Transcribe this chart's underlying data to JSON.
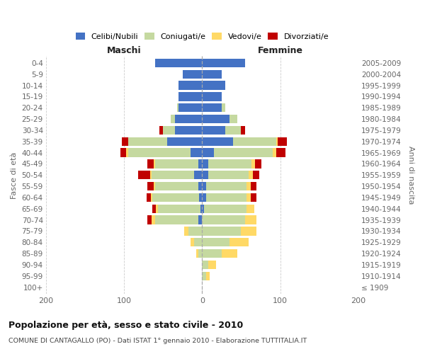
{
  "age_groups": [
    "100+",
    "95-99",
    "90-94",
    "85-89",
    "80-84",
    "75-79",
    "70-74",
    "65-69",
    "60-64",
    "55-59",
    "50-54",
    "45-49",
    "40-44",
    "35-39",
    "30-34",
    "25-29",
    "20-24",
    "15-19",
    "10-14",
    "5-9",
    "0-4"
  ],
  "birth_years": [
    "≤ 1909",
    "1910-1914",
    "1915-1919",
    "1920-1924",
    "1925-1929",
    "1930-1934",
    "1935-1939",
    "1940-1944",
    "1945-1949",
    "1950-1954",
    "1955-1959",
    "1960-1964",
    "1965-1969",
    "1970-1974",
    "1975-1979",
    "1980-1984",
    "1985-1989",
    "1990-1994",
    "1995-1999",
    "2000-2004",
    "2005-2009"
  ],
  "colors": {
    "celibi": "#4472C4",
    "coniugati": "#c5d9a0",
    "vedovi": "#ffd966",
    "divorziati": "#c00000"
  },
  "m_celibi": [
    0,
    0,
    0,
    0,
    0,
    0,
    5,
    2,
    4,
    5,
    10,
    5,
    15,
    45,
    35,
    35,
    30,
    30,
    30,
    25,
    60
  ],
  "m_coniugati": [
    0,
    0,
    0,
    5,
    10,
    18,
    55,
    55,
    60,
    55,
    55,
    55,
    80,
    50,
    15,
    5,
    2,
    0,
    0,
    0,
    0
  ],
  "m_vedovi": [
    0,
    0,
    0,
    3,
    5,
    5,
    5,
    2,
    2,
    2,
    2,
    2,
    2,
    0,
    0,
    0,
    0,
    0,
    0,
    0,
    0
  ],
  "m_divorziati": [
    0,
    0,
    0,
    0,
    0,
    0,
    5,
    5,
    5,
    8,
    15,
    8,
    8,
    8,
    5,
    0,
    0,
    0,
    0,
    0,
    0
  ],
  "f_nubili": [
    0,
    0,
    0,
    0,
    0,
    0,
    0,
    2,
    5,
    5,
    8,
    8,
    15,
    40,
    30,
    35,
    25,
    25,
    30,
    25,
    55
  ],
  "f_coniugate": [
    0,
    5,
    8,
    25,
    35,
    50,
    55,
    55,
    52,
    52,
    52,
    55,
    75,
    55,
    20,
    10,
    5,
    0,
    0,
    0,
    0
  ],
  "f_vedove": [
    0,
    5,
    10,
    20,
    25,
    20,
    15,
    10,
    5,
    5,
    5,
    5,
    5,
    2,
    0,
    0,
    0,
    0,
    0,
    0,
    0
  ],
  "f_divorziate": [
    0,
    0,
    0,
    0,
    0,
    0,
    0,
    0,
    8,
    8,
    8,
    8,
    12,
    12,
    5,
    0,
    0,
    0,
    0,
    0,
    0
  ],
  "xlim": 200,
  "title": "Popolazione per età, sesso e stato civile - 2010",
  "subtitle": "COMUNE DI CANTAGALLO (PO) - Dati ISTAT 1° gennaio 2010 - Elaborazione TUTTITALIA.IT",
  "xlabel_left": "Maschi",
  "xlabel_right": "Femmine",
  "ylabel_left": "Fasce di età",
  "ylabel_right": "Anni di nascita",
  "bar_height": 0.78,
  "grid_color": "#cccccc",
  "bg_color": "#ffffff",
  "tick_color": "#666666",
  "spine_color": "#cccccc"
}
